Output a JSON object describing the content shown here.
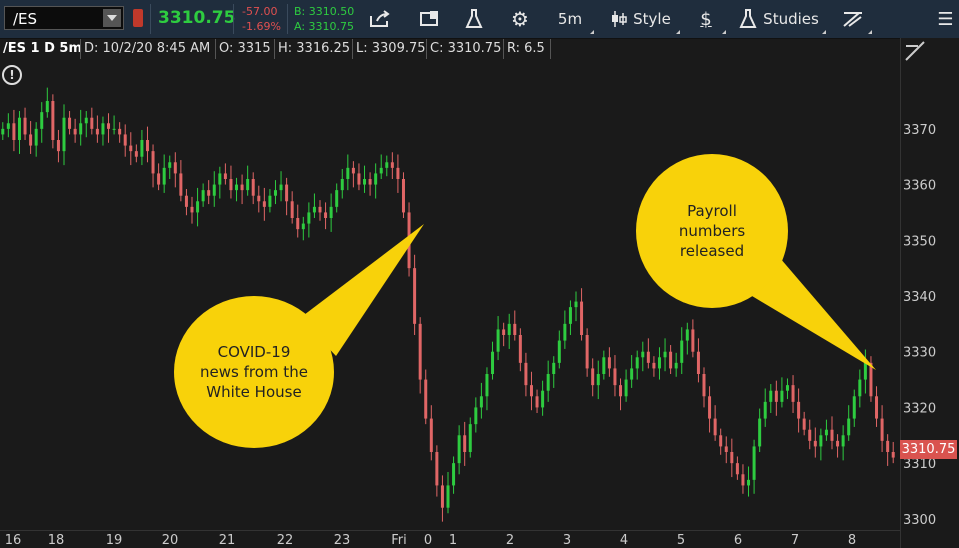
{
  "toolbar": {
    "symbol": "/ES",
    "last_price": "3310.75",
    "net_change": "-57.00",
    "pct_change": "-1.69%",
    "bid": "B: 3310.50",
    "ask": "A: 3310.75",
    "timeframe": "5m",
    "style_label": "Style",
    "studies_label": "Studies"
  },
  "infobar": {
    "title": "/ES 1 D 5m",
    "date": "D: 10/2/20 8:45 AM",
    "open": "O: 3315",
    "high": "H: 3316.25",
    "low": "L: 3309.75",
    "close": "C: 3310.75",
    "range": "R: 6.5"
  },
  "annotations": {
    "covid": "COVID-19\nnews from the\nWhite House",
    "payroll": "Payroll\nnumbers\nreleased"
  },
  "price_tag": "3310.75",
  "colors": {
    "up": "#2ecc40",
    "down": "#e06666",
    "bubble": "#f8d20a",
    "background": "#1a1a1a"
  },
  "chart_data": {
    "type": "candlestick",
    "x_tick_labels": [
      "16",
      "18",
      "19",
      "20",
      "21",
      "22",
      "23",
      "Fri",
      "0",
      "1",
      "2",
      "3",
      "4",
      "5",
      "6",
      "7",
      "8"
    ],
    "y_ticks": [
      3300,
      3310,
      3320,
      3330,
      3340,
      3350,
      3360,
      3370
    ],
    "ylim": [
      3298,
      3382
    ],
    "close_path": [
      3370,
      3371,
      3368,
      3372,
      3369,
      3367,
      3370,
      3373,
      3375,
      3368,
      3366,
      3372,
      3370,
      3369,
      3371,
      3372,
      3370,
      3369,
      3371,
      3370,
      3370,
      3369,
      3367,
      3366,
      3365,
      3368,
      3366,
      3362,
      3360,
      3363,
      3364,
      3362,
      3358,
      3356,
      3355,
      3357,
      3359,
      3358,
      3360,
      3362,
      3361,
      3359,
      3360,
      3359,
      3361,
      3358,
      3357,
      3356,
      3358,
      3359,
      3360,
      3357,
      3354,
      3352,
      3353,
      3355,
      3356,
      3355,
      3354,
      3356,
      3359,
      3361,
      3363,
      3362,
      3360,
      3361,
      3360,
      3362,
      3363,
      3364,
      3363,
      3361,
      3355,
      3345,
      3335,
      3325,
      3318,
      3312,
      3306,
      3302,
      3306,
      3310,
      3315,
      3312,
      3317,
      3320,
      3322,
      3326,
      3330,
      3334,
      3333,
      3335,
      3333,
      3328,
      3324,
      3322,
      3320,
      3323,
      3326,
      3328,
      3332,
      3335,
      3338,
      3339,
      3333,
      3327,
      3324,
      3326,
      3329,
      3327,
      3324,
      3322,
      3325,
      3327,
      3329,
      3330,
      3328,
      3327,
      3329,
      3330,
      3327,
      3328,
      3332,
      3334,
      3330,
      3326,
      3322,
      3318,
      3315,
      3313,
      3312,
      3310,
      3308,
      3306,
      3307,
      3313,
      3318,
      3321,
      3323,
      3321,
      3323,
      3324,
      3321,
      3318,
      3316,
      3314,
      3313,
      3315,
      3316,
      3314,
      3313,
      3315,
      3318,
      3322,
      3325,
      3328,
      3322,
      3318,
      3314,
      3312,
      3311
    ],
    "events": [
      {
        "label": "COVID-19 news from the White House",
        "x_index": 71
      },
      {
        "label": "Payroll numbers released",
        "x_index": 152
      }
    ]
  }
}
